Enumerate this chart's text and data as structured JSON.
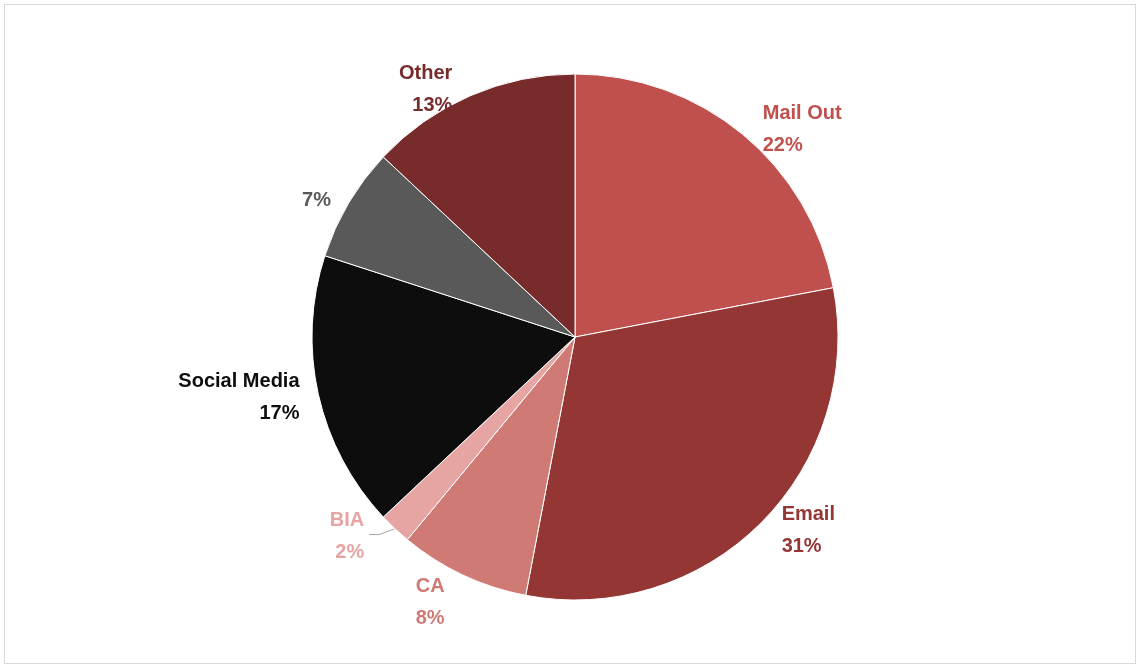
{
  "chart_data": {
    "type": "pie",
    "categories": [
      "Mail Out",
      "Email",
      "CA",
      "BIA",
      "Social Media",
      null,
      "Other"
    ],
    "values": [
      22,
      31,
      8,
      2,
      17,
      7,
      13
    ],
    "value_labels": [
      "22%",
      "31%",
      "8%",
      "2%",
      "17%",
      "7%",
      "13%"
    ],
    "colors": [
      "#c0504d",
      "#943634",
      "#d07a75",
      "#e6a5a3",
      "#0d0d0d",
      "#595959",
      "#772b2b"
    ],
    "legend": false
  }
}
